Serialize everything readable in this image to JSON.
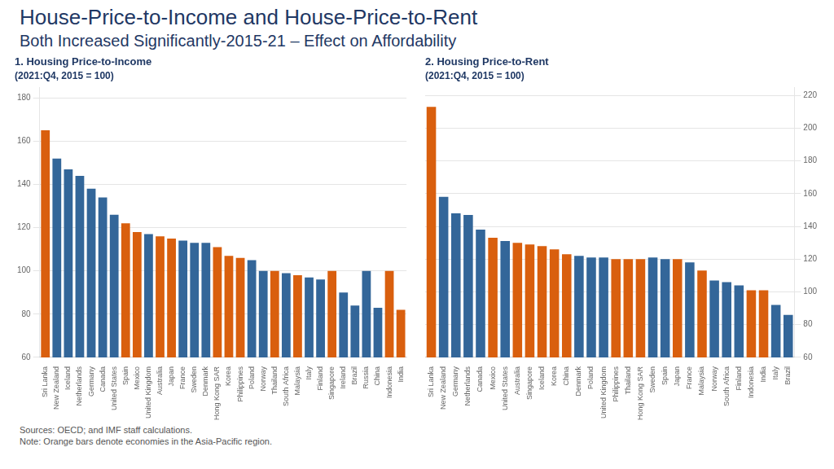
{
  "title": "House-Price-to-Income and House-Price-to-Rent",
  "subtitle": "Both Increased Significantly-2015-21 – Effect on Affordability",
  "annotations": [
    "Sources: OECD; and IMF staff calculations.\nNote: Orange bars denote economies in the Asia-Pacific region."
  ],
  "chart_data": [
    {
      "type": "bar",
      "title": "1. Housing Price-to-Income",
      "subtitle": "(2021:Q4, 2015 = 100)",
      "categories": [
        "Sri Lanka",
        "New Zealand",
        "Iceland",
        "Netherlands",
        "Germany",
        "Canada",
        "United States",
        "Spain",
        "Mexico",
        "United Kingdom",
        "Australia",
        "Japan",
        "France",
        "Sweden",
        "Denmark",
        "Hong Kong SAR",
        "Korea",
        "Philippines",
        "Poland",
        "Norway",
        "Thailand",
        "South Africa",
        "Malaysia",
        "Italy",
        "Finland",
        "Singapore",
        "Ireland",
        "Brazil",
        "Russia",
        "China",
        "Indonesia",
        "India"
      ],
      "values": [
        165,
        152,
        147,
        144,
        138,
        134,
        126,
        122,
        118,
        117,
        116,
        115,
        114,
        113,
        113,
        111,
        107,
        106,
        105,
        100,
        100,
        99,
        98,
        97,
        96,
        100,
        90,
        84,
        100,
        83,
        100,
        82
      ],
      "colors": [
        "#d95f0e",
        "#336699",
        "#336699",
        "#336699",
        "#336699",
        "#336699",
        "#336699",
        "#d95f0e",
        "#d95f0e",
        "#336699",
        "#d95f0e",
        "#d95f0e",
        "#336699",
        "#336699",
        "#336699",
        "#d95f0e",
        "#d95f0e",
        "#d95f0e",
        "#336699",
        "#336699",
        "#d95f0e",
        "#336699",
        "#d95f0e",
        "#336699",
        "#336699",
        "#d95f0e",
        "#336699",
        "#336699",
        "#336699",
        "#336699",
        "#d95f0e",
        "#d95f0e"
      ],
      "ylim": [
        60,
        185
      ],
      "yticks": [
        60,
        80,
        100,
        120,
        140,
        160,
        180
      ],
      "grid": true
    },
    {
      "type": "bar",
      "title": "2. Housing Price-to-Rent",
      "subtitle": "(2021:Q4, 2015 = 100)",
      "categories": [
        "Sri Lanka",
        "New Zealand",
        "Germany",
        "Netherlands",
        "Canada",
        "Mexico",
        "United States",
        "Australia",
        "Singapore",
        "Iceland",
        "Korea",
        "China",
        "Denmark",
        "Poland",
        "United Kingdom",
        "Philippines",
        "Thailand",
        "Hong Kong SAR",
        "Sweden",
        "Spain",
        "Japan",
        "France",
        "Malaysia",
        "Norway",
        "South Africa",
        "Finland",
        "Indonesia",
        "India",
        "Italy",
        "Brazil"
      ],
      "values": [
        213,
        158,
        148,
        147,
        138,
        133,
        131,
        130,
        129,
        128,
        126,
        123,
        122,
        121,
        121,
        120,
        120,
        120,
        121,
        120,
        120,
        118,
        113,
        107,
        106,
        104,
        101,
        101,
        92,
        86
      ],
      "colors": [
        "#d95f0e",
        "#336699",
        "#336699",
        "#336699",
        "#336699",
        "#d95f0e",
        "#336699",
        "#d95f0e",
        "#d95f0e",
        "#d95f0e",
        "#d95f0e",
        "#d95f0e",
        "#336699",
        "#336699",
        "#336699",
        "#d95f0e",
        "#d95f0e",
        "#d95f0e",
        "#336699",
        "#336699",
        "#d95f0e",
        "#336699",
        "#d95f0e",
        "#336699",
        "#336699",
        "#336699",
        "#d95f0e",
        "#d95f0e",
        "#336699",
        "#336699"
      ],
      "ylim": [
        60,
        225
      ],
      "yticks": [
        60,
        80,
        100,
        120,
        140,
        160,
        180,
        200,
        220
      ],
      "grid": true
    }
  ]
}
